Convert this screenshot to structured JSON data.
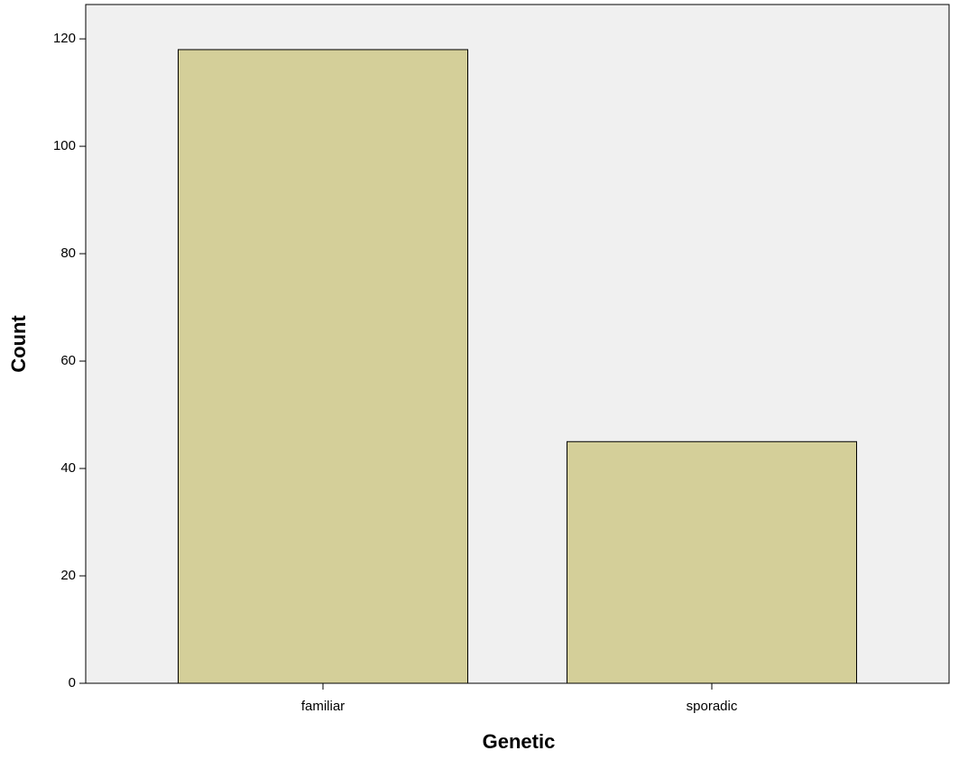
{
  "chart_data": {
    "type": "bar",
    "x_label": "Genetic",
    "y_label": "Count",
    "categories": [
      "familiar",
      "sporadic"
    ],
    "values": [
      118,
      45
    ],
    "color": "#d4cf99",
    "ylim": [
      0,
      126.4
    ],
    "yticks": [
      0,
      20,
      40,
      60,
      80,
      100,
      120
    ],
    "grid": false
  }
}
